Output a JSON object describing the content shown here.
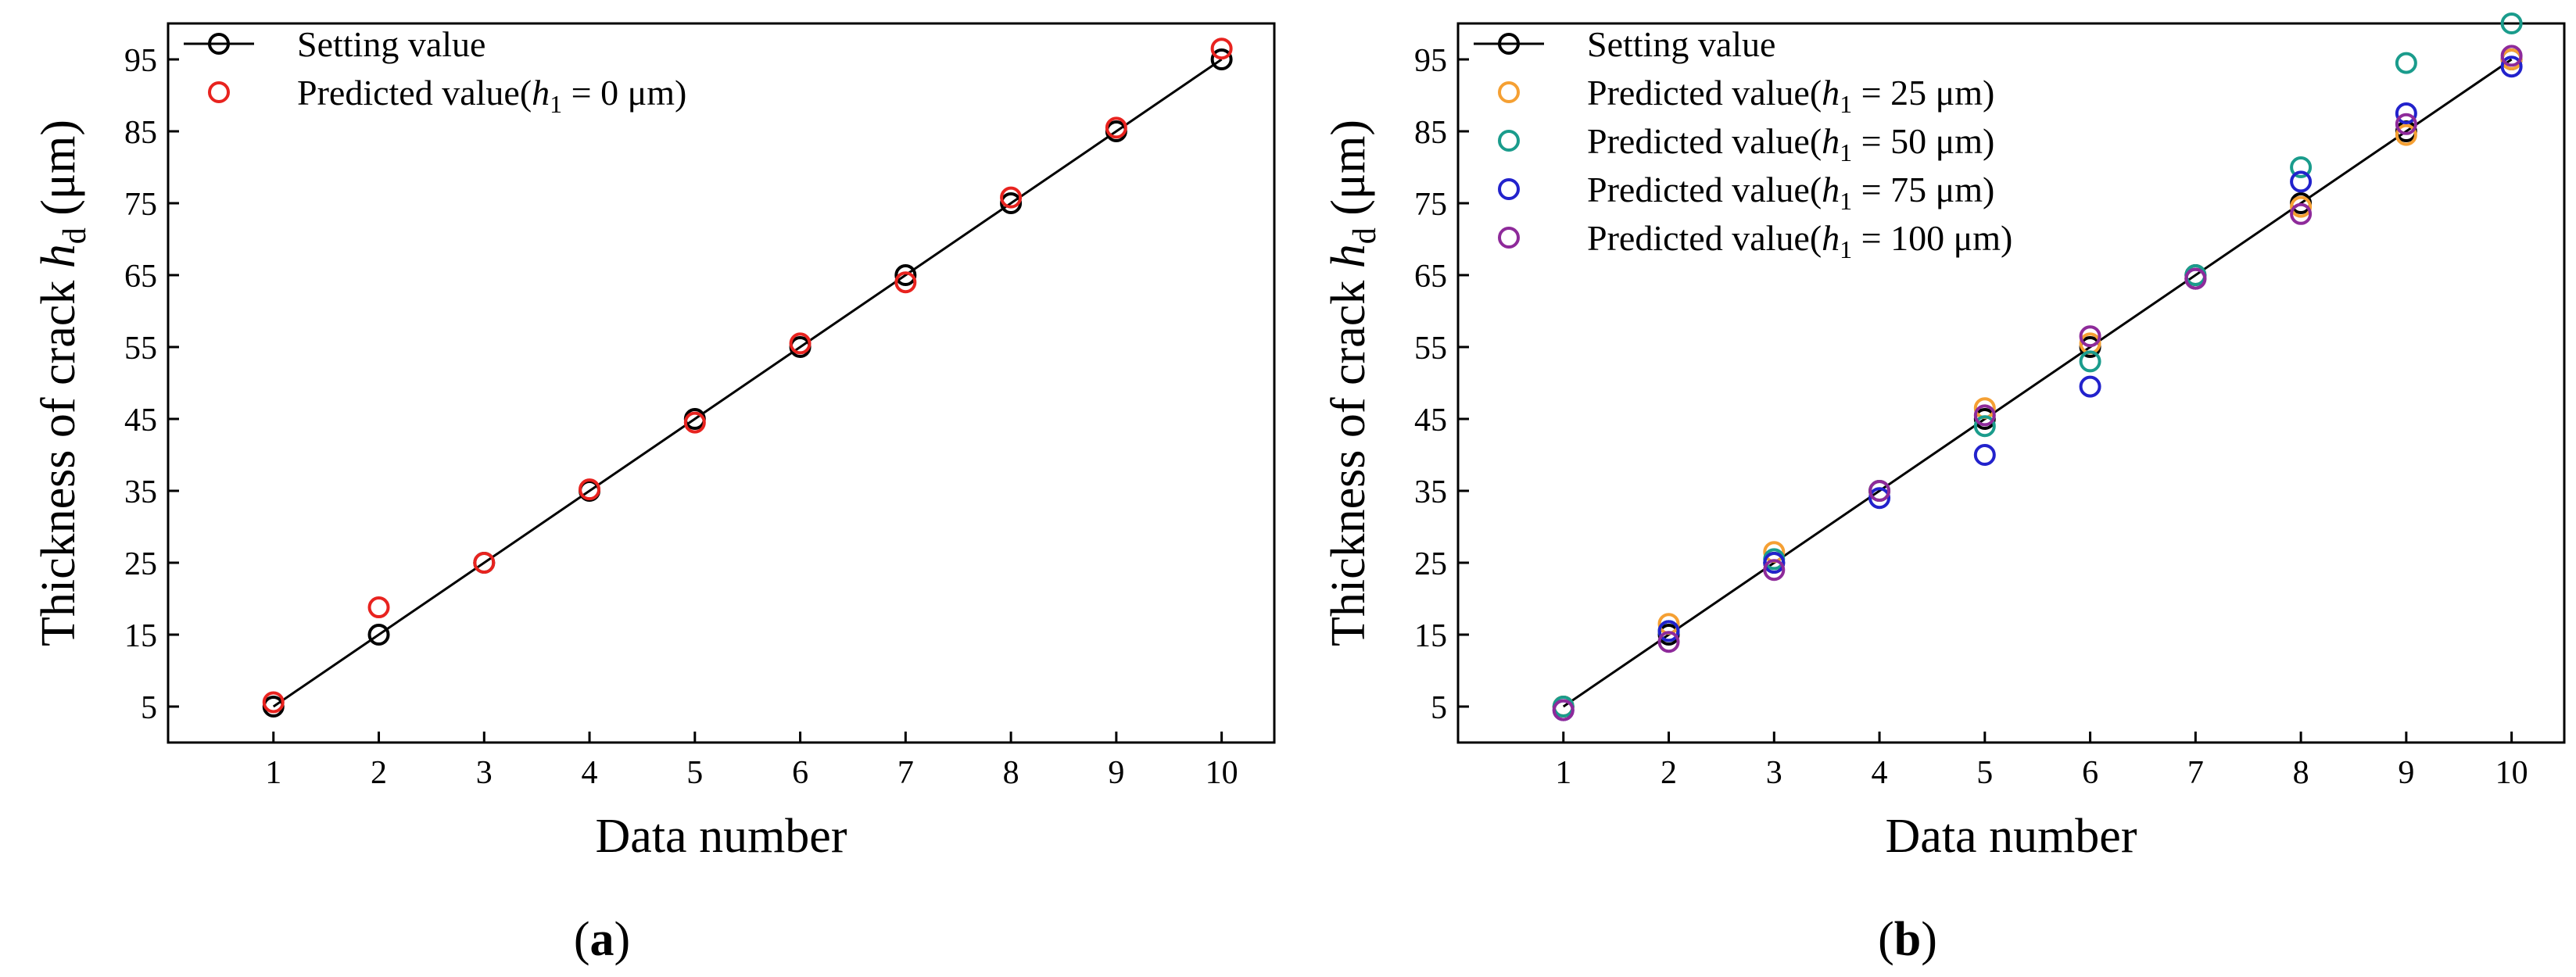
{
  "chart_data": [
    {
      "type": "line+scatter",
      "panel_label": "a",
      "xlabel": "Data number",
      "ylabel_prefix": "Thickness of crack ",
      "ylabel_var": "h",
      "ylabel_sub": "d",
      "ylabel_suffix": " (μm)",
      "x_ticks": [
        1,
        2,
        3,
        4,
        5,
        6,
        7,
        8,
        9,
        10
      ],
      "y_ticks": [
        5,
        15,
        25,
        35,
        45,
        55,
        65,
        75,
        85,
        95
      ],
      "xlim": [
        0,
        10.5
      ],
      "ylim": [
        0,
        100
      ],
      "legend_position": "top-left",
      "series": [
        {
          "name": "Setting value",
          "legend_prefix": "Setting value",
          "legend_var": "",
          "legend_sub": "",
          "legend_suffix": "",
          "color": "#000000",
          "style": "line-marker",
          "x": [
            1,
            2,
            3,
            4,
            5,
            6,
            7,
            8,
            9,
            10
          ],
          "y": [
            5,
            15,
            25,
            35,
            45,
            55,
            65,
            75,
            85,
            95
          ]
        },
        {
          "name": "Predicted value(h1 = 0 μm)",
          "legend_prefix": "Predicted value(",
          "legend_var": "h",
          "legend_sub": "1",
          "legend_suffix": " = 0 μm)",
          "color": "#e8231f",
          "style": "marker",
          "x": [
            1,
            2,
            3,
            4,
            5,
            6,
            7,
            8,
            9,
            10
          ],
          "y": [
            5.6,
            18.8,
            25,
            35.2,
            44.5,
            55.5,
            64,
            75.8,
            85.5,
            96.5
          ]
        }
      ]
    },
    {
      "type": "line+scatter",
      "panel_label": "b",
      "xlabel": "Data number",
      "ylabel_prefix": "Thickness of crack ",
      "ylabel_var": "h",
      "ylabel_sub": "d",
      "ylabel_suffix": " (μm)",
      "x_ticks": [
        1,
        2,
        3,
        4,
        5,
        6,
        7,
        8,
        9,
        10
      ],
      "y_ticks": [
        5,
        15,
        25,
        35,
        45,
        55,
        65,
        75,
        85,
        95
      ],
      "xlim": [
        0,
        10.5
      ],
      "ylim": [
        0,
        100
      ],
      "legend_position": "top-left",
      "series": [
        {
          "name": "Setting value",
          "legend_prefix": "Setting value",
          "legend_var": "",
          "legend_sub": "",
          "legend_suffix": "",
          "color": "#000000",
          "style": "line-marker",
          "x": [
            1,
            2,
            3,
            4,
            5,
            6,
            7,
            8,
            9,
            10
          ],
          "y": [
            5,
            15,
            25,
            35,
            45,
            55,
            65,
            75,
            85,
            95
          ]
        },
        {
          "name": "Predicted value(h1 = 25 μm)",
          "legend_prefix": "Predicted value(",
          "legend_var": "h",
          "legend_sub": "1",
          "legend_suffix": " = 25 μm)",
          "color": "#f5a033",
          "style": "marker",
          "x": [
            1,
            2,
            3,
            4,
            5,
            6,
            7,
            8,
            9,
            10
          ],
          "y": [
            5,
            16.5,
            26.5,
            35,
            46.5,
            55.5,
            64.5,
            74.5,
            84.5,
            95
          ]
        },
        {
          "name": "Predicted value(h1 = 50 μm)",
          "legend_prefix": "Predicted value(",
          "legend_var": "h",
          "legend_sub": "1",
          "legend_suffix": " = 50 μm)",
          "color": "#1a9c8c",
          "style": "marker",
          "x": [
            1,
            2,
            3,
            4,
            5,
            6,
            7,
            8,
            9,
            10
          ],
          "y": [
            5,
            15.5,
            25.5,
            35,
            44,
            53,
            65,
            80,
            94.5,
            100
          ]
        },
        {
          "name": "Predicted value(h1 = 75 μm)",
          "legend_prefix": "Predicted value(",
          "legend_var": "h",
          "legend_sub": "1",
          "legend_suffix": " = 75 μm)",
          "color": "#2222cc",
          "style": "marker",
          "x": [
            1,
            2,
            3,
            4,
            5,
            6,
            7,
            8,
            9,
            10
          ],
          "y": [
            4.5,
            15.5,
            25,
            34,
            40,
            49.5,
            64.5,
            78,
            87.5,
            94
          ]
        },
        {
          "name": "Predicted value(h1 = 100 μm)",
          "legend_prefix": "Predicted value(",
          "legend_var": "h",
          "legend_sub": "1",
          "legend_suffix": " = 100 μm)",
          "color": "#8e2a9a",
          "style": "marker",
          "x": [
            1,
            2,
            3,
            4,
            5,
            6,
            7,
            8,
            9,
            10
          ],
          "y": [
            4.5,
            14,
            24,
            35,
            45.5,
            56.5,
            64.5,
            73.5,
            86,
            95.5
          ]
        }
      ]
    }
  ]
}
